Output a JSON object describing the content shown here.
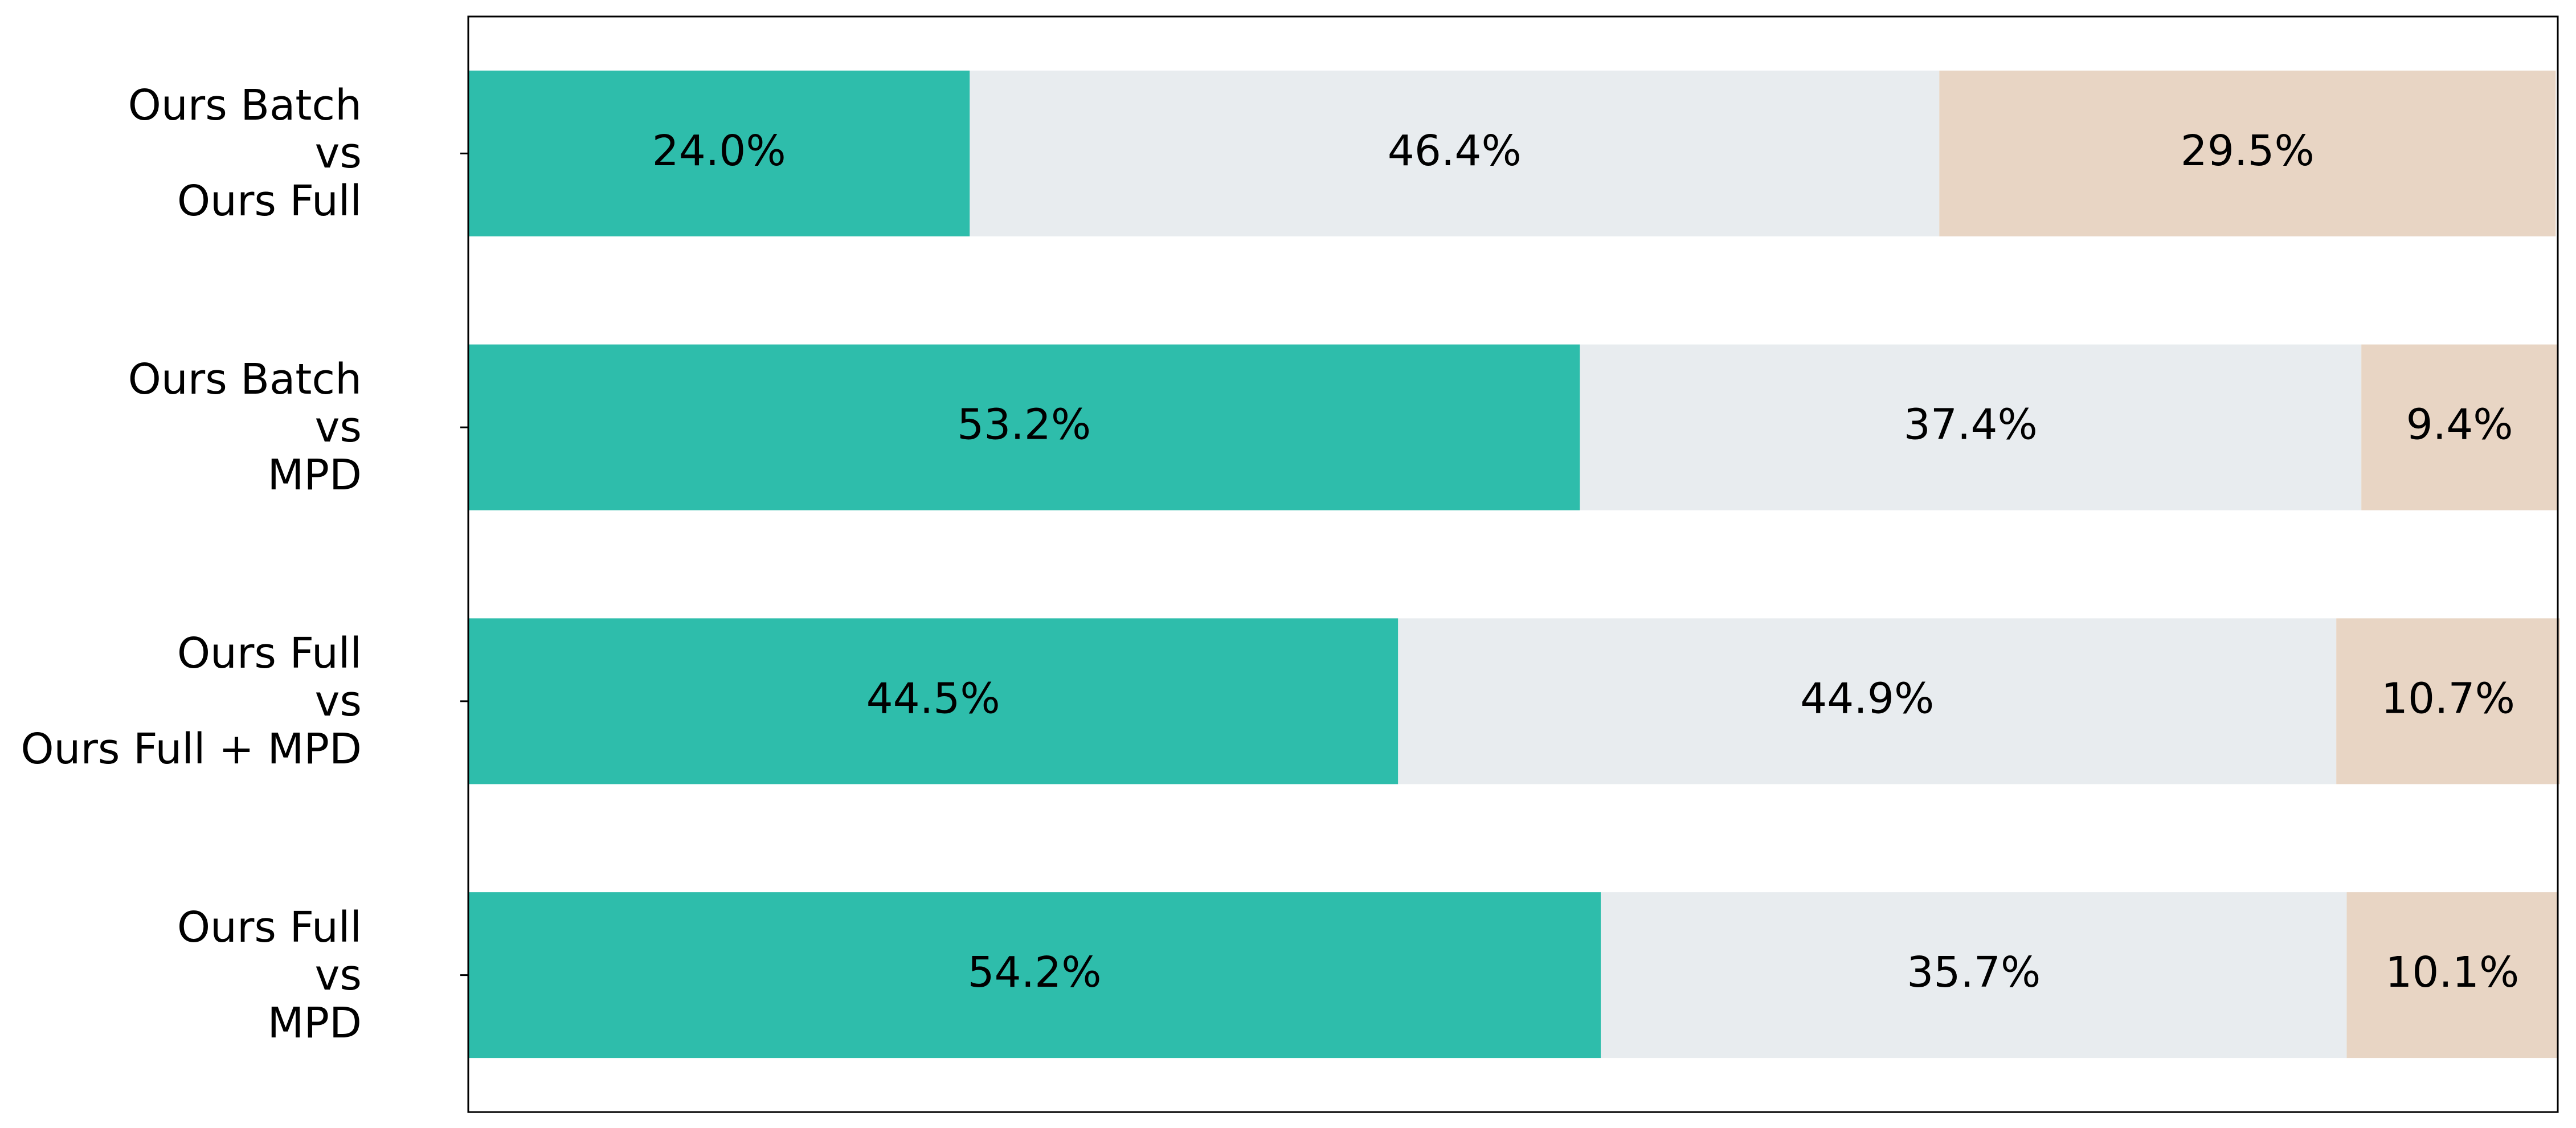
{
  "chart_data": {
    "type": "stacked-barh",
    "categories": [
      "Ours Batch\nvs\nOurs Full",
      "Ours Batch\nvs\nMPD",
      "Ours Full\nvs\nOurs Full + MPD",
      "Ours Full\nvs\nMPD"
    ],
    "series": [
      {
        "color": "#2ebdab",
        "values": [
          24.0,
          53.2,
          44.5,
          54.2
        ],
        "value_labels": [
          "24.0%",
          "53.2%",
          "44.5%",
          "54.2%"
        ]
      },
      {
        "color": "#e8ecef",
        "values": [
          46.4,
          37.4,
          44.9,
          35.7
        ],
        "value_labels": [
          "46.4%",
          "37.4%",
          "44.9%",
          "35.7%"
        ]
      },
      {
        "color": "#e8d5c4",
        "values": [
          29.5,
          9.4,
          10.7,
          10.1
        ],
        "value_labels": [
          "29.5%",
          "9.4%",
          "10.7%",
          "10.1%"
        ]
      }
    ],
    "xlim": [
      0,
      100
    ]
  }
}
